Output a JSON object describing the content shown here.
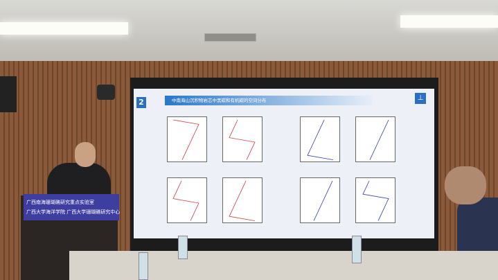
{
  "slide": {
    "number": "2",
    "title": "中南海山沉积物岩芯中黑碳和有机碳的空间分布",
    "logo_icon": "institution-logo-icon",
    "plot_count": 8,
    "colors": {
      "title_bar": "#2a78c8",
      "series_red": "#d04040",
      "series_blue": "#3040b0"
    }
  },
  "podium_sign": {
    "line1": "广西南海珊瑚礁研究重点实验室",
    "line2": "广西大学海洋学院  广西大学珊瑚礁研究中心",
    "color": "#3d3ea0"
  }
}
